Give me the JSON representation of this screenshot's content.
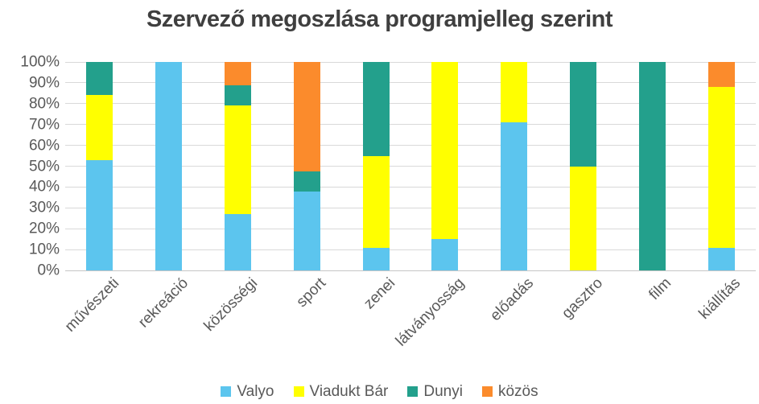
{
  "chart_data": {
    "type": "bar",
    "variant": "100%-stacked-column",
    "title": "Szervező megoszlása programjelleg szerint",
    "categories": [
      "művészeti",
      "rekreáció",
      "közösségi",
      "sport",
      "zenei",
      "látványosság",
      "előadás",
      "gasztro",
      "film",
      "kiállítás"
    ],
    "series": [
      {
        "name": "Valyo",
        "color": "#5CC5EE",
        "values": [
          53,
          100,
          27,
          38,
          11,
          15,
          71,
          0,
          0,
          11
        ]
      },
      {
        "name": "Viadukt Bár",
        "color": "#FFFF00",
        "values": [
          31,
          0,
          52,
          0,
          44,
          85,
          29,
          50,
          0,
          77
        ]
      },
      {
        "name": "Dunyi",
        "color": "#23A08C",
        "values": [
          16,
          0,
          10,
          9.5,
          45,
          0,
          0,
          50,
          100,
          0
        ]
      },
      {
        "name": "közös",
        "color": "#FB8B2C",
        "values": [
          0,
          0,
          11,
          52.5,
          0,
          0,
          0,
          0,
          0,
          12
        ]
      }
    ],
    "xlabel": "",
    "ylabel": "",
    "ylim": [
      0,
      100
    ],
    "y_ticks": [
      "0%",
      "10%",
      "20%",
      "30%",
      "40%",
      "50%",
      "60%",
      "70%",
      "80%",
      "90%",
      "100%"
    ],
    "grid": true,
    "legend_position": "bottom",
    "colors": {
      "gridline": "#d9d9d9",
      "baseline": "#c6c6c6",
      "axis_text": "#595959",
      "title_text": "#3f3f3f"
    }
  }
}
